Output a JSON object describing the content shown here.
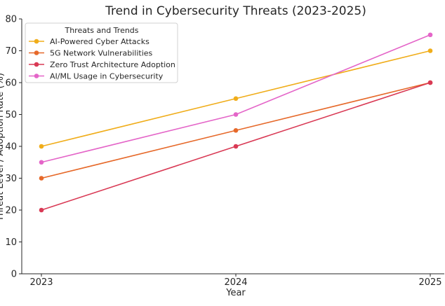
{
  "chart_data": {
    "type": "line",
    "title": "Trend in Cybersecurity Threats (2023-2025)",
    "xlabel": "Year",
    "ylabel": "Threat Level / Adoption Rate (%)",
    "x": [
      "2023",
      "2024",
      "2025"
    ],
    "ylim": [
      0,
      80
    ],
    "yticks": [
      0,
      10,
      20,
      30,
      40,
      50,
      60,
      70,
      80
    ],
    "grid": false,
    "legend": {
      "title": "Threats and Trends",
      "placement": "top-left"
    },
    "series": [
      {
        "name": "AI-Powered Cyber Attacks",
        "values": [
          40,
          55,
          70
        ],
        "color": "#f0ad1a"
      },
      {
        "name": "5G Network Vulnerabilities",
        "values": [
          30,
          45,
          60
        ],
        "color": "#e6692a"
      },
      {
        "name": "Zero Trust Architecture Adoption",
        "values": [
          20,
          40,
          60
        ],
        "color": "#d93a55"
      },
      {
        "name": "AI/ML Usage in Cybersecurity",
        "values": [
          35,
          50,
          75
        ],
        "color": "#e465c8"
      }
    ]
  }
}
